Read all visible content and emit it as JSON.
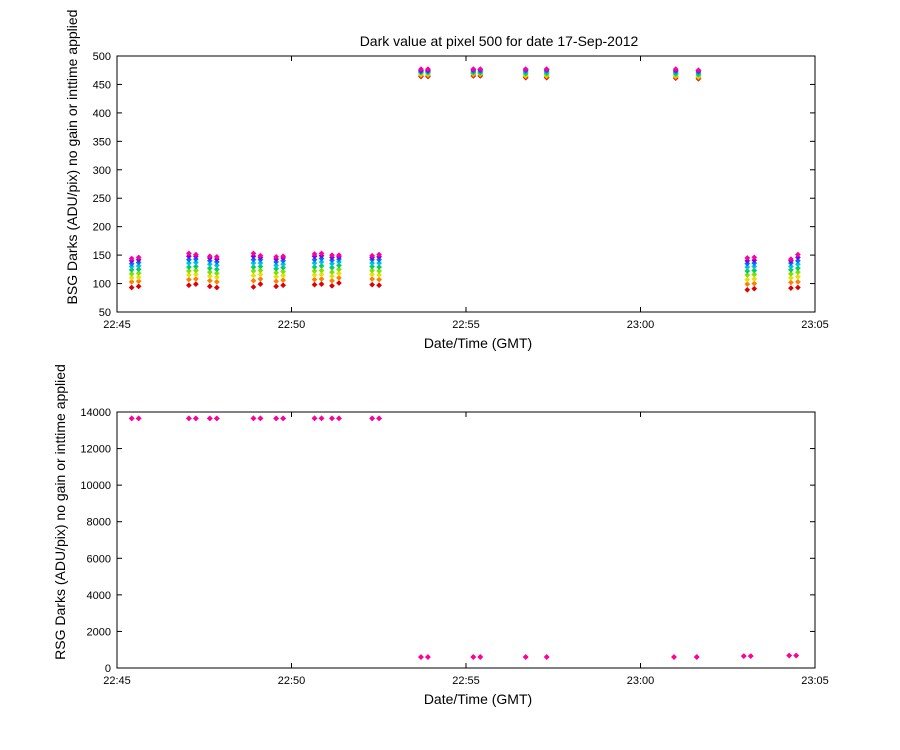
{
  "chart_data": [
    {
      "id": "bsg",
      "type": "scatter",
      "title": "Dark value at pixel 500 for date 17-Sep-2012",
      "xlabel": "Date/Time (GMT)",
      "ylabel": "BSG Darks (ADU/pix) no gain or inttime applied",
      "xlim_minutes": [
        0,
        20
      ],
      "xticks": [
        {
          "value": 0,
          "label": "22:45"
        },
        {
          "value": 5,
          "label": "22:50"
        },
        {
          "value": 10,
          "label": "22:55"
        },
        {
          "value": 15,
          "label": "23:00"
        },
        {
          "value": 20,
          "label": "23:05"
        }
      ],
      "ylim": [
        50,
        500
      ],
      "yticks": [
        {
          "value": 50,
          "label": "50"
        },
        {
          "value": 100,
          "label": "100"
        },
        {
          "value": 150,
          "label": "150"
        },
        {
          "value": 200,
          "label": "200"
        },
        {
          "value": 250,
          "label": "250"
        },
        {
          "value": 300,
          "label": "300"
        },
        {
          "value": 350,
          "label": "350"
        },
        {
          "value": 400,
          "label": "400"
        },
        {
          "value": 450,
          "label": "450"
        },
        {
          "value": 500,
          "label": "500"
        }
      ],
      "colors": [
        "#e00000",
        "#ff7f00",
        "#e8e000",
        "#80e000",
        "#00d060",
        "#00c0e0",
        "#0070ff",
        "#8000e0",
        "#ff00a0"
      ],
      "groups": [
        {
          "x": 0.42,
          "y": [
            93,
            103,
            110,
            117,
            124,
            130,
            135,
            140,
            144
          ]
        },
        {
          "x": 0.62,
          "y": [
            95,
            104,
            111,
            118,
            125,
            131,
            137,
            142,
            146
          ]
        },
        {
          "x": 2.06,
          "y": [
            97,
            107,
            115,
            122,
            129,
            136,
            142,
            148,
            153
          ]
        },
        {
          "x": 2.26,
          "y": [
            99,
            108,
            116,
            123,
            130,
            137,
            143,
            148,
            151
          ]
        },
        {
          "x": 2.66,
          "y": [
            95,
            105,
            113,
            120,
            127,
            134,
            140,
            145,
            148
          ]
        },
        {
          "x": 2.86,
          "y": [
            93,
            103,
            111,
            118,
            125,
            132,
            138,
            143,
            147
          ]
        },
        {
          "x": 3.91,
          "y": [
            94,
            105,
            114,
            122,
            129,
            136,
            142,
            148,
            153
          ]
        },
        {
          "x": 4.11,
          "y": [
            99,
            108,
            116,
            123,
            130,
            136,
            142,
            146,
            149
          ]
        },
        {
          "x": 4.56,
          "y": [
            95,
            104,
            112,
            119,
            126,
            132,
            138,
            143,
            147
          ]
        },
        {
          "x": 4.76,
          "y": [
            97,
            106,
            114,
            121,
            128,
            134,
            140,
            145,
            148
          ]
        },
        {
          "x": 5.66,
          "y": [
            98,
            107,
            115,
            122,
            129,
            136,
            142,
            148,
            152
          ]
        },
        {
          "x": 5.86,
          "y": [
            99,
            108,
            116,
            123,
            131,
            138,
            144,
            149,
            153
          ]
        },
        {
          "x": 6.16,
          "y": [
            96,
            105,
            113,
            120,
            128,
            135,
            141,
            146,
            150
          ]
        },
        {
          "x": 6.36,
          "y": [
            101,
            110,
            118,
            125,
            132,
            138,
            143,
            147,
            150
          ]
        },
        {
          "x": 7.31,
          "y": [
            98,
            108,
            116,
            123,
            130,
            136,
            142,
            146,
            149
          ]
        },
        {
          "x": 7.51,
          "y": [
            97,
            107,
            115,
            122,
            129,
            136,
            142,
            147,
            151
          ]
        },
        {
          "x": 8.71,
          "y": [
            464,
            466,
            468,
            470,
            471,
            472,
            473,
            475,
            477
          ]
        },
        {
          "x": 8.91,
          "y": [
            464,
            466,
            468,
            470,
            471,
            472,
            473,
            475,
            477
          ]
        },
        {
          "x": 10.21,
          "y": [
            465,
            467,
            469,
            470,
            471,
            473,
            474,
            476,
            477
          ]
        },
        {
          "x": 10.41,
          "y": [
            465,
            467,
            469,
            470,
            471,
            473,
            474,
            476,
            477
          ]
        },
        {
          "x": 11.71,
          "y": [
            462,
            464,
            466,
            468,
            470,
            472,
            474,
            476,
            477
          ]
        },
        {
          "x": 12.31,
          "y": [
            462,
            464,
            466,
            468,
            470,
            472,
            474,
            476,
            477
          ]
        },
        {
          "x": 16.01,
          "y": [
            461,
            463,
            465,
            467,
            469,
            471,
            473,
            475,
            477
          ]
        },
        {
          "x": 16.66,
          "y": [
            460,
            462,
            464,
            466,
            468,
            470,
            472,
            474,
            475
          ]
        },
        {
          "x": 18.06,
          "y": [
            89,
            99,
            107,
            115,
            122,
            129,
            135,
            140,
            145
          ]
        },
        {
          "x": 18.26,
          "y": [
            91,
            100,
            108,
            116,
            123,
            130,
            136,
            141,
            146
          ]
        },
        {
          "x": 19.31,
          "y": [
            92,
            102,
            110,
            117,
            124,
            130,
            136,
            140,
            143
          ]
        },
        {
          "x": 19.51,
          "y": [
            93,
            103,
            112,
            120,
            127,
            134,
            140,
            146,
            151
          ]
        }
      ]
    },
    {
      "id": "rsg",
      "type": "scatter",
      "title": "",
      "xlabel": "Date/Time (GMT)",
      "ylabel": "RSG Darks (ADU/pix) no gain or inttime applied",
      "xlim_minutes": [
        0,
        20
      ],
      "xticks": [
        {
          "value": 0,
          "label": "22:45"
        },
        {
          "value": 5,
          "label": "22:50"
        },
        {
          "value": 10,
          "label": "22:55"
        },
        {
          "value": 15,
          "label": "23:00"
        },
        {
          "value": 20,
          "label": "23:05"
        }
      ],
      "ylim": [
        0,
        14000
      ],
      "yticks": [
        {
          "value": 0,
          "label": "0"
        },
        {
          "value": 2000,
          "label": "2000"
        },
        {
          "value": 4000,
          "label": "4000"
        },
        {
          "value": 6000,
          "label": "6000"
        },
        {
          "value": 8000,
          "label": "8000"
        },
        {
          "value": 10000,
          "label": "10000"
        },
        {
          "value": 12000,
          "label": "12000"
        },
        {
          "value": 14000,
          "label": "14000"
        }
      ],
      "colors": [
        "#e00000",
        "#ff00a0"
      ],
      "points": [
        {
          "x": 0.42,
          "y": 13650
        },
        {
          "x": 0.62,
          "y": 13650
        },
        {
          "x": 2.06,
          "y": 13650
        },
        {
          "x": 2.26,
          "y": 13650
        },
        {
          "x": 2.66,
          "y": 13650
        },
        {
          "x": 2.86,
          "y": 13650
        },
        {
          "x": 3.91,
          "y": 13650
        },
        {
          "x": 4.11,
          "y": 13650
        },
        {
          "x": 4.56,
          "y": 13650
        },
        {
          "x": 4.76,
          "y": 13650
        },
        {
          "x": 5.66,
          "y": 13650
        },
        {
          "x": 5.86,
          "y": 13650
        },
        {
          "x": 6.16,
          "y": 13650
        },
        {
          "x": 6.36,
          "y": 13650
        },
        {
          "x": 7.31,
          "y": 13650
        },
        {
          "x": 7.51,
          "y": 13650
        },
        {
          "x": 8.71,
          "y": 600
        },
        {
          "x": 8.91,
          "y": 600
        },
        {
          "x": 10.21,
          "y": 600
        },
        {
          "x": 10.41,
          "y": 600
        },
        {
          "x": 11.71,
          "y": 600
        },
        {
          "x": 12.31,
          "y": 600
        },
        {
          "x": 15.96,
          "y": 600
        },
        {
          "x": 16.61,
          "y": 600
        },
        {
          "x": 17.96,
          "y": 650
        },
        {
          "x": 18.16,
          "y": 650
        },
        {
          "x": 19.26,
          "y": 680
        },
        {
          "x": 19.46,
          "y": 680
        }
      ]
    }
  ]
}
